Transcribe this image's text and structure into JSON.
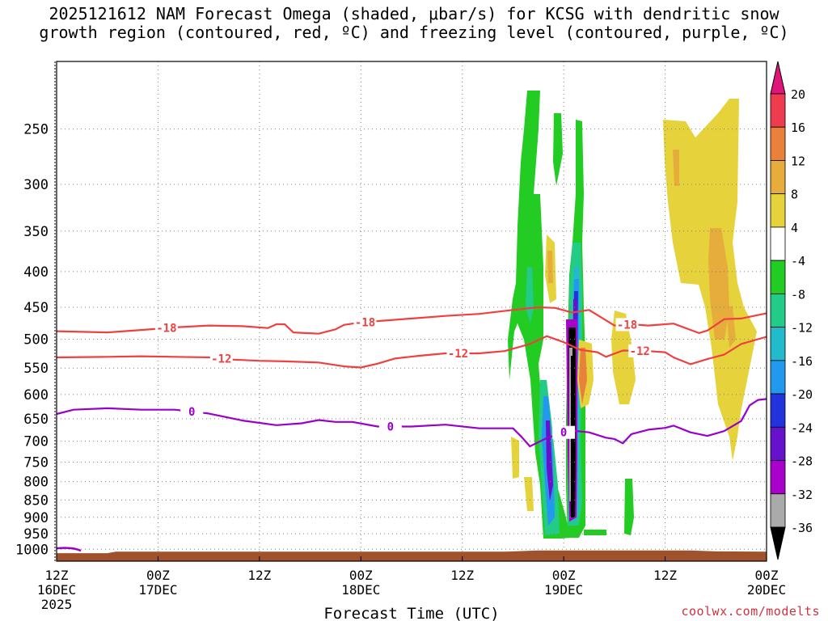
{
  "title_line1": "2025121612 NAM Forecast Omega (shaded, μbar/s) for KCSG with dendritic snow",
  "title_line2": "growth region (contoured, red, ºC) and freezing level (contoured, purple, ºC)",
  "credit": "coolwx.com/modelts",
  "chart_data": {
    "type": "heatmap",
    "xlabel": "Forecast Time (UTC)",
    "ylabel": "",
    "x_forecast_hours": [
      0,
      84
    ],
    "y_pressure_hpa": [
      1040,
      200
    ],
    "x_ticks": [
      {
        "hour": 0,
        "line1": "12Z",
        "line2": "16DEC",
        "line3": "2025"
      },
      {
        "hour": 12,
        "line1": "00Z",
        "line2": "17DEC",
        "line3": ""
      },
      {
        "hour": 24,
        "line1": "12Z",
        "line2": "",
        "line3": ""
      },
      {
        "hour": 36,
        "line1": "00Z",
        "line2": "18DEC",
        "line3": ""
      },
      {
        "hour": 48,
        "line1": "12Z",
        "line2": "",
        "line3": ""
      },
      {
        "hour": 60,
        "line1": "00Z",
        "line2": "19DEC",
        "line3": ""
      },
      {
        "hour": 72,
        "line1": "12Z",
        "line2": "",
        "line3": ""
      },
      {
        "hour": 84,
        "line1": "00Z",
        "line2": "20DEC",
        "line3": ""
      }
    ],
    "y_ticks": [
      1000,
      950,
      900,
      850,
      800,
      750,
      700,
      650,
      600,
      550,
      500,
      450,
      400,
      350,
      300,
      250
    ],
    "grid": true,
    "colorbar": {
      "labels": [
        "20",
        "16",
        "12",
        "8",
        "4",
        "-4",
        "-8",
        "-12",
        "-16",
        "-20",
        "-24",
        "-28",
        "-32",
        "-36"
      ],
      "colors": [
        "#ef3b4f",
        "#e8823a",
        "#e6ad3c",
        "#e6d33c",
        "#ffffff",
        "#22cc22",
        "#22cc88",
        "#22bbcc",
        "#2299ee",
        "#2233dd",
        "#6611cc",
        "#aa00cc",
        "#aaaaaa"
      ],
      "top_color": "#e0157a",
      "bottom_color": "#000000"
    },
    "surface_color": "#a0522d",
    "series": [
      {
        "name": "-18",
        "color": "#ef4040",
        "label_hours": [
          13,
          36.5,
          67.5
        ],
        "points": [
          [
            0,
            487
          ],
          [
            6,
            489
          ],
          [
            10,
            485
          ],
          [
            14,
            481
          ],
          [
            18,
            478
          ],
          [
            22,
            479
          ],
          [
            25,
            482
          ],
          [
            26,
            476
          ],
          [
            27,
            476
          ],
          [
            28,
            489
          ],
          [
            31,
            491
          ],
          [
            33,
            484
          ],
          [
            34,
            477
          ],
          [
            36,
            473
          ],
          [
            40,
            469
          ],
          [
            46,
            463
          ],
          [
            50,
            460
          ],
          [
            54,
            454
          ],
          [
            57,
            450
          ],
          [
            59,
            451
          ],
          [
            61,
            458
          ],
          [
            63,
            454
          ],
          [
            66,
            478
          ],
          [
            68,
            476
          ],
          [
            70,
            478
          ],
          [
            73,
            475
          ],
          [
            76,
            490
          ],
          [
            77,
            486
          ],
          [
            79,
            468
          ],
          [
            81,
            467
          ],
          [
            84,
            459
          ]
        ]
      },
      {
        "name": "-12",
        "color": "#ef4040",
        "label_hours": [
          19.5,
          47.5,
          69
        ],
        "points": [
          [
            0,
            531
          ],
          [
            6,
            530
          ],
          [
            10,
            529
          ],
          [
            14,
            530
          ],
          [
            18,
            531
          ],
          [
            21,
            535
          ],
          [
            24,
            537
          ],
          [
            27,
            538
          ],
          [
            31,
            540
          ],
          [
            34,
            547
          ],
          [
            36,
            549
          ],
          [
            38,
            542
          ],
          [
            40,
            533
          ],
          [
            43,
            528
          ],
          [
            46,
            524
          ],
          [
            50,
            524
          ],
          [
            53,
            520
          ],
          [
            56,
            508
          ],
          [
            58,
            495
          ],
          [
            60,
            505
          ],
          [
            62,
            518
          ],
          [
            64,
            522
          ],
          [
            65,
            530
          ],
          [
            67,
            519
          ],
          [
            70,
            520
          ],
          [
            72,
            522
          ],
          [
            73,
            531
          ],
          [
            75,
            543
          ],
          [
            77,
            534
          ],
          [
            79,
            526
          ],
          [
            81,
            508
          ],
          [
            84,
            496
          ]
        ]
      },
      {
        "name": "0",
        "color": "#9900cc",
        "label_hours": [
          16,
          39.5,
          60
        ],
        "points": [
          [
            0,
            640
          ],
          [
            2,
            631
          ],
          [
            6,
            628
          ],
          [
            10,
            631
          ],
          [
            14,
            631
          ],
          [
            18,
            639
          ],
          [
            22,
            654
          ],
          [
            26,
            664
          ],
          [
            29,
            660
          ],
          [
            31,
            653
          ],
          [
            33,
            657
          ],
          [
            35,
            657
          ],
          [
            38,
            667
          ],
          [
            42,
            667
          ],
          [
            46,
            663
          ],
          [
            50,
            671
          ],
          [
            54,
            671
          ],
          [
            55,
            690
          ],
          [
            56,
            712
          ],
          [
            58,
            693
          ],
          [
            60,
            680
          ],
          [
            61,
            676
          ],
          [
            63,
            680
          ],
          [
            65,
            692
          ],
          [
            66,
            695
          ],
          [
            67,
            705
          ],
          [
            68,
            684
          ],
          [
            70,
            674
          ],
          [
            72,
            670
          ],
          [
            73,
            665
          ],
          [
            75,
            680
          ],
          [
            77,
            688
          ],
          [
            79,
            677
          ],
          [
            81,
            655
          ],
          [
            82,
            622
          ],
          [
            83,
            611
          ],
          [
            84,
            609
          ]
        ]
      }
    ]
  }
}
